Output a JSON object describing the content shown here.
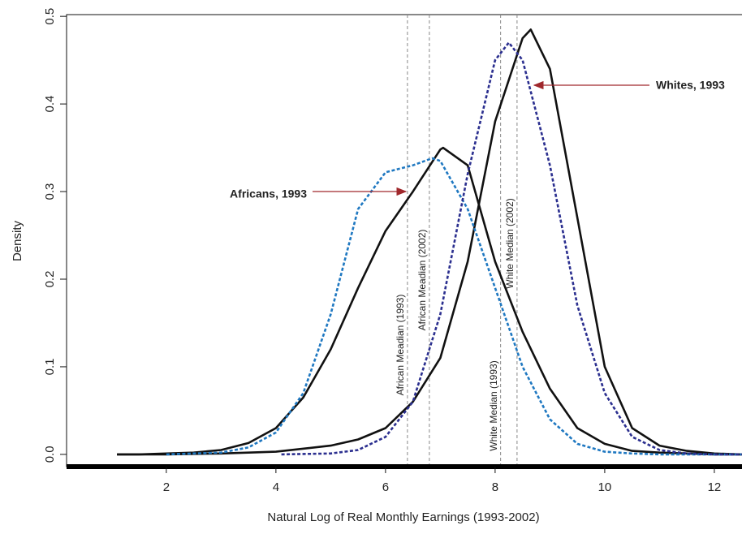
{
  "chart_data": {
    "type": "line",
    "x_label": "Natural Log of Real Monthly Earnings (1993-2002)",
    "y_label": "Density",
    "xlim": [
      0.18,
      12.49
    ],
    "ylim": [
      -0.014,
      0.502
    ],
    "xticks": [
      2,
      4,
      6,
      8,
      10,
      12
    ],
    "yticks": [
      {
        "value": 0,
        "label": "0.0"
      },
      0.1,
      0.2,
      0.3,
      0.4,
      0.5
    ],
    "vlines": [
      {
        "x": 6.4,
        "label": "African Meadian (1993)"
      },
      {
        "x": 6.8,
        "label": "African Meadian (2002)"
      },
      {
        "x": 8.1,
        "label": "White Median (1993)"
      },
      {
        "x": 8.4,
        "label": "White Median (2002)"
      }
    ],
    "series": [
      {
        "name": "Africans, 1993",
        "color": "#111111",
        "dash": false,
        "x": [
          1.1,
          1.5,
          2,
          2.5,
          3,
          3.5,
          4,
          4.5,
          5,
          5.5,
          6,
          6.5,
          7,
          7.05,
          7.5,
          8,
          8.5,
          9,
          9.5,
          10,
          10.5,
          11,
          11.5,
          12,
          12.5
        ],
        "values": [
          0,
          0,
          0.001,
          0.002,
          0.005,
          0.013,
          0.03,
          0.065,
          0.12,
          0.19,
          0.255,
          0.3,
          0.348,
          0.35,
          0.33,
          0.22,
          0.14,
          0.075,
          0.03,
          0.012,
          0.004,
          0.002,
          0.001,
          0,
          0
        ]
      },
      {
        "name": "Whites, 1993",
        "color": "#111111",
        "dash": false,
        "x": [
          1.1,
          2,
          3,
          4,
          5,
          5.5,
          6,
          6.5,
          7,
          7.5,
          8,
          8.5,
          8.65,
          9,
          9.5,
          10,
          10.5,
          11,
          11.5,
          12,
          12.5
        ],
        "values": [
          0,
          0,
          0.001,
          0.003,
          0.01,
          0.017,
          0.03,
          0.06,
          0.11,
          0.22,
          0.38,
          0.475,
          0.485,
          0.44,
          0.27,
          0.1,
          0.03,
          0.01,
          0.004,
          0.001,
          0
        ]
      },
      {
        "color": "#1f78c1",
        "dash": true,
        "x": [
          2,
          3,
          3.5,
          4,
          4.5,
          5,
          5.5,
          6,
          6.5,
          6.85,
          7,
          7.5,
          8,
          8.5,
          9,
          9.5,
          10,
          10.5,
          11,
          12,
          12.5
        ],
        "values": [
          0,
          0.002,
          0.008,
          0.025,
          0.07,
          0.16,
          0.28,
          0.322,
          0.33,
          0.338,
          0.335,
          0.28,
          0.19,
          0.1,
          0.04,
          0.012,
          0.003,
          0.001,
          0,
          0,
          0
        ]
      },
      {
        "color": "#2b2f8f",
        "dash": true,
        "x": [
          4.1,
          5,
          5.5,
          6,
          6.5,
          7,
          7.5,
          8,
          8.25,
          8.5,
          9,
          9.5,
          10,
          10.5,
          11,
          11.5,
          12,
          12.5
        ],
        "values": [
          0,
          0.001,
          0.005,
          0.02,
          0.06,
          0.16,
          0.32,
          0.45,
          0.47,
          0.45,
          0.33,
          0.17,
          0.07,
          0.02,
          0.005,
          0.001,
          0,
          0
        ]
      }
    ]
  }
}
